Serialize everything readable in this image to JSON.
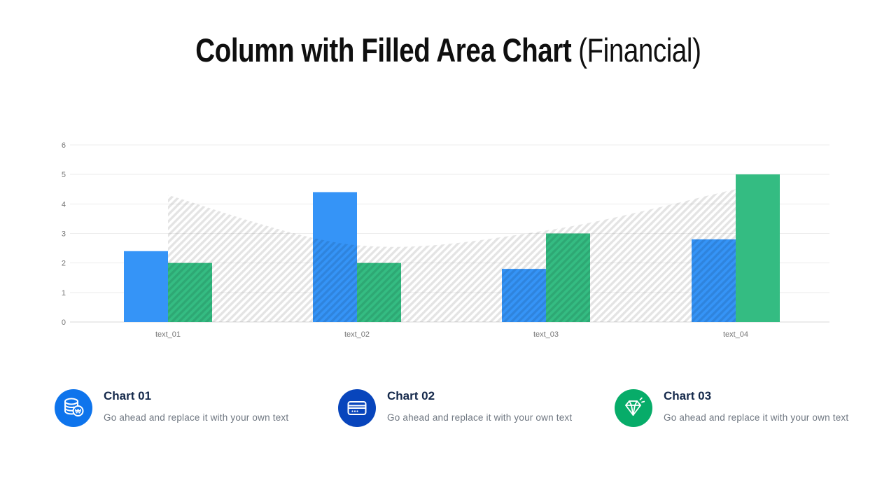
{
  "title": {
    "main": "Column with Filled Area Chart",
    "suffix": "(Financial)"
  },
  "chart_data": {
    "type": "combo-column-area",
    "title": "",
    "categories": [
      "text_01",
      "text_02",
      "text_03",
      "text_04"
    ],
    "series": [
      {
        "name": "blue-columns",
        "type": "column",
        "color": "#3594F7",
        "values": [
          2.4,
          4.4,
          1.8,
          2.8
        ]
      },
      {
        "name": "green-columns",
        "type": "column",
        "color": "#34BC82",
        "values": [
          2.0,
          2.0,
          3.0,
          5.0
        ]
      },
      {
        "name": "filled-area",
        "type": "area",
        "pattern": "diagonal-hatch",
        "color": "rgba(0,0,0,0.105)",
        "values": [
          4.3,
          2.6,
          3.1,
          4.5
        ]
      }
    ],
    "yticks": [
      0,
      1,
      2,
      3,
      4,
      5,
      6
    ],
    "ylim": [
      0,
      6
    ],
    "grid": true,
    "legend_position": "none",
    "axis_label_color": "#757575",
    "gridline_color": "#ededed",
    "baseline_color": "#d9d9d9"
  },
  "legend": {
    "items": [
      {
        "label": "Chart 01",
        "description": "Go ahead and replace it with your own text",
        "icon": "coins-icon",
        "icon_bg": "#0E74EC"
      },
      {
        "label": "Chart 02",
        "description": "Go ahead and replace it with your own text",
        "icon": "credit-card-icon",
        "icon_bg": "#0845BC"
      },
      {
        "label": "Chart 03",
        "description": "Go ahead and replace it with your own text",
        "icon": "diamond-icon",
        "icon_bg": "#07AC69"
      }
    ]
  }
}
